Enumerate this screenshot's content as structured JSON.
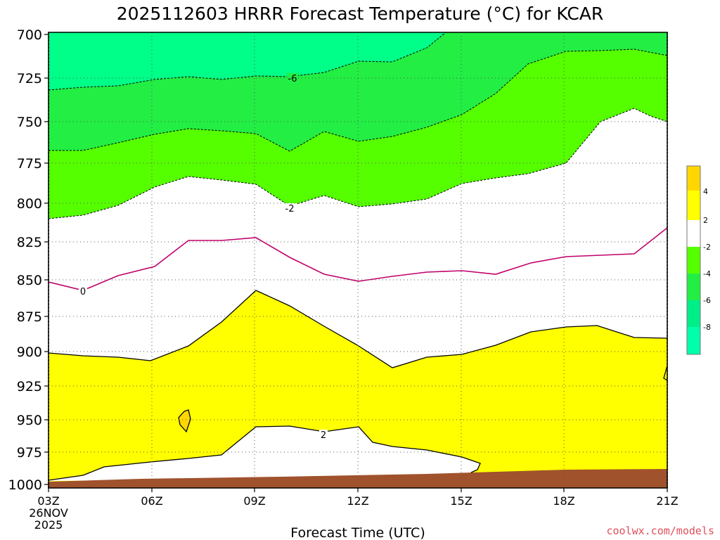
{
  "chart_data": {
    "type": "contour",
    "title": "2025112603 HRRR Forecast Temperature (°C) for KCAR",
    "xlabel": "Forecast Time (UTC)",
    "x_start_label": [
      "03Z",
      "26NOV",
      "2025"
    ],
    "x_ticks": [
      "03Z",
      "06Z",
      "09Z",
      "12Z",
      "15Z",
      "18Z",
      "21Z"
    ],
    "y_ticks": [
      "700",
      "725",
      "750",
      "775",
      "800",
      "825",
      "850",
      "875",
      "900",
      "925",
      "950",
      "975",
      "1000"
    ],
    "y_range": [
      1000,
      700
    ],
    "grid": true,
    "colorbar": {
      "labels": [
        "4",
        "2",
        "-2",
        "-4",
        "-6",
        "-8"
      ],
      "colors": [
        "#ffd700",
        "#ffff00",
        "#ffffff",
        "#55ff00",
        "#22ee44",
        "#00ee88",
        "#00ffaa"
      ]
    },
    "fills": {
      "below_minus8": "#00ff88",
      "minus6_to_minus4": "#22ee44",
      "minus4_to_minus2": "#55ff00",
      "between_minus2_and_2": "#ffffff",
      "2_to_4": "#ffff00",
      "4_to_6": "#ffd700",
      "terrain": "#a0522d"
    },
    "contour_labels": [
      {
        "value": "-6",
        "x": 10,
        "y": 725
      },
      {
        "value": "-2",
        "x": 10,
        "y": 803
      },
      {
        "value": "0",
        "x": 4,
        "y": 858
      },
      {
        "value": "2",
        "x": 11,
        "y": 960
      }
    ],
    "series": [
      {
        "name": "-6",
        "x": [
          3,
          4,
          5,
          6,
          7,
          8,
          9,
          10,
          11,
          12,
          13,
          14,
          14.5
        ],
        "y": [
          737,
          735,
          734,
          730,
          728,
          730,
          728,
          729,
          725,
          718,
          719,
          710,
          700
        ]
      },
      {
        "name": "-4",
        "x": [
          3,
          4,
          5,
          6,
          7,
          8,
          9,
          10,
          10.5,
          11,
          12,
          13,
          14,
          15,
          16,
          17,
          18,
          19,
          20,
          21
        ],
        "y": [
          767,
          767,
          762,
          757,
          753,
          754,
          755,
          767,
          756,
          760,
          762,
          760,
          755,
          749,
          736,
          720,
          712,
          711,
          711,
          715
        ]
      },
      {
        "name": "-2",
        "x": [
          3,
          4,
          5,
          6,
          7,
          8,
          9,
          10,
          11,
          12,
          13,
          14,
          15,
          16,
          17,
          18,
          19,
          20,
          21
        ],
        "y": [
          808,
          806,
          801,
          794,
          786,
          787,
          790,
          803,
          798,
          803,
          801,
          799,
          790,
          787,
          784,
          775,
          762,
          758,
          762
        ]
      },
      {
        "name": "0",
        "x": [
          3,
          4,
          5,
          6,
          7,
          8,
          9,
          10,
          11,
          12,
          13,
          14,
          15,
          16,
          17,
          18,
          19,
          20,
          21
        ],
        "y": [
          852,
          857,
          848,
          842,
          825,
          825,
          824,
          836,
          846,
          850,
          847,
          845,
          844,
          845,
          840,
          836,
          835,
          834,
          815
        ]
      },
      {
        "name": "2 (upper)",
        "x": [
          3,
          4,
          5,
          6,
          7,
          8,
          9,
          10,
          11,
          12,
          13,
          14,
          15,
          16,
          17,
          18,
          19,
          20,
          21
        ],
        "y": [
          900,
          902,
          904,
          905,
          895,
          880,
          857,
          866,
          880,
          893,
          912,
          904,
          902,
          896,
          888,
          886,
          885,
          891,
          891
        ]
      },
      {
        "name": "2 (lower)",
        "x": [
          3,
          4,
          5,
          6,
          7,
          8,
          9,
          10,
          11,
          12,
          13,
          14,
          15,
          16,
          16.2,
          17,
          18,
          19,
          20,
          21
        ],
        "y": [
          995,
          992,
          987,
          986,
          984,
          982,
          955,
          956,
          960,
          955,
          973,
          976,
          978,
          990,
          993,
          993,
          993,
          992,
          992,
          992
        ]
      }
    ]
  },
  "credit": "coolwx.com/models"
}
